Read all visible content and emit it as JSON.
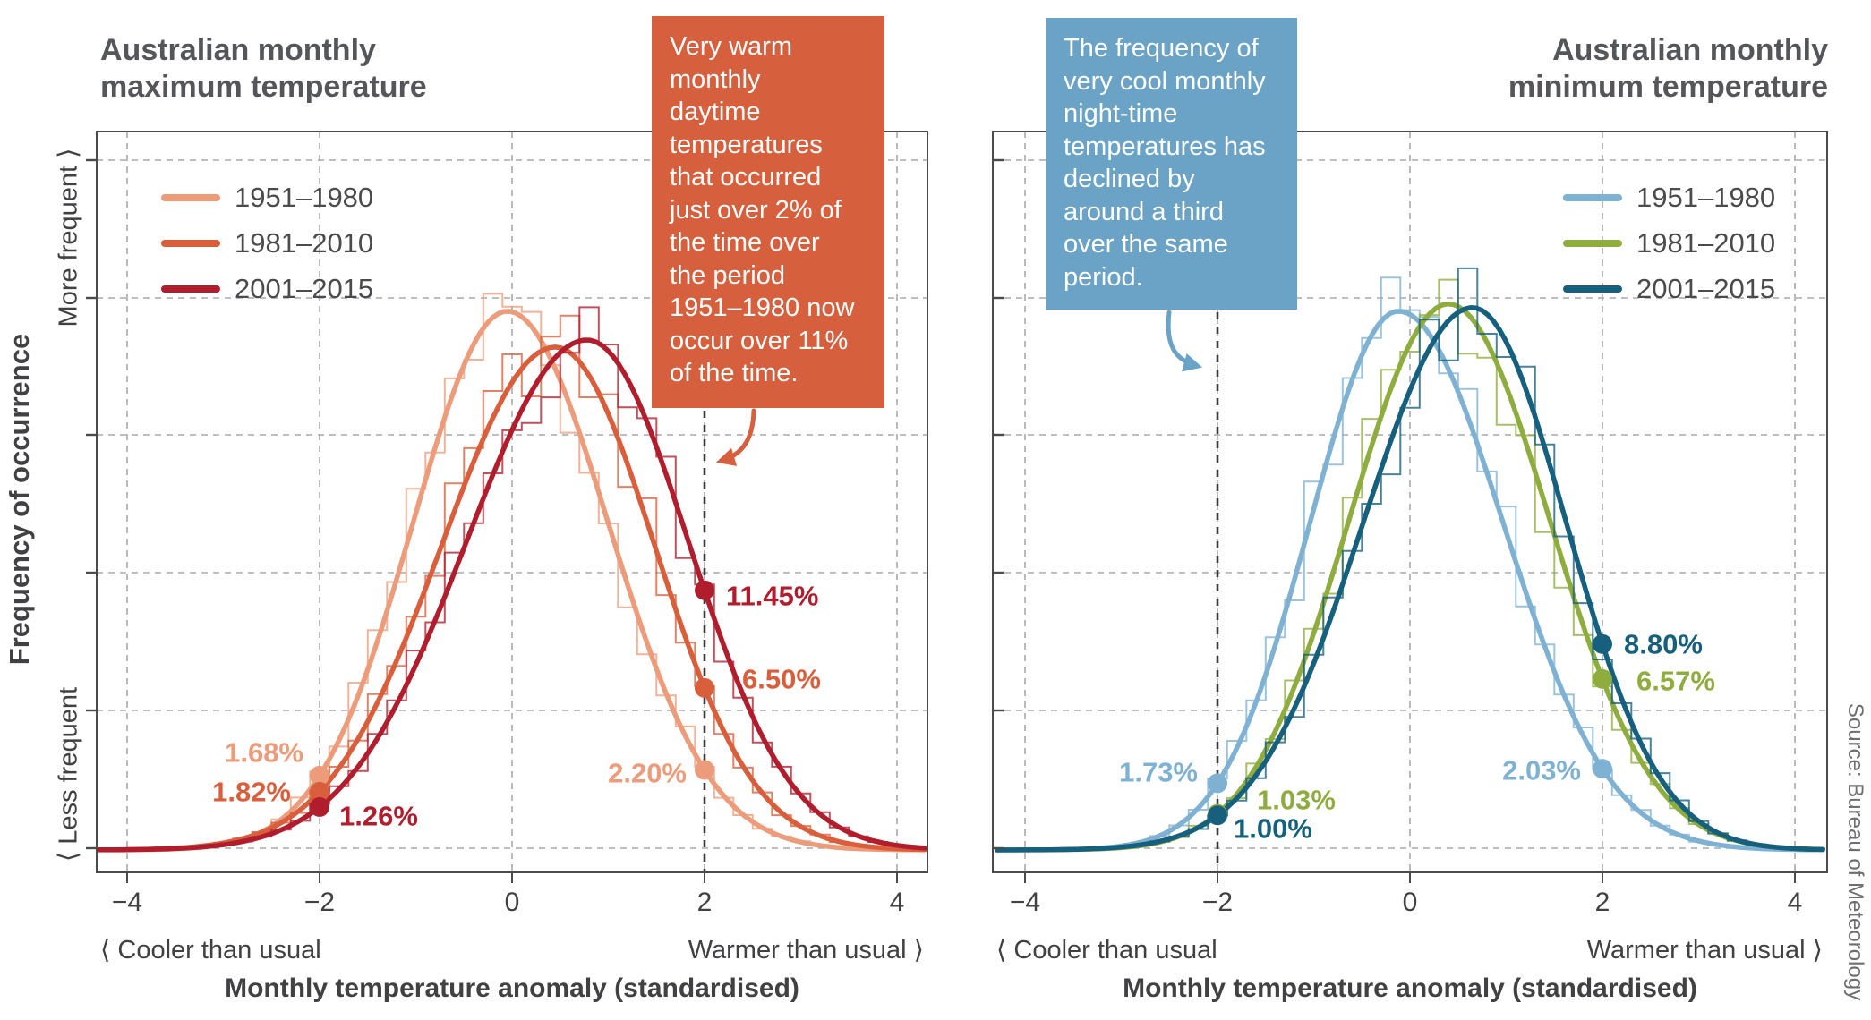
{
  "figure": {
    "y_axis_title": "Frequency of occurrence",
    "y_more_label": "More frequent ⟩",
    "y_less_label": "⟨ Less frequent",
    "source": "Source: Bureau of Meteorology",
    "colors": {
      "grid": "#A7A9AC",
      "border": "#4A4B4D",
      "annotation_line": "#3A3A3A",
      "text": "#414042",
      "title_text": "#55565A"
    }
  },
  "chart_data": [
    {
      "type": "area",
      "panel": "left",
      "title_line1": "Australian monthly",
      "title_line2": "maximum temperature",
      "xlabel": "Monthly temperature anomaly (standardised)",
      "x_tick_values": [
        -4,
        -2,
        0,
        2,
        4
      ],
      "x_ticks": [
        "−4",
        "−2",
        "0",
        "2",
        "4"
      ],
      "x_range": [
        -4.3,
        4.3
      ],
      "x_range_label_left": "⟨ Cooler than usual",
      "x_range_label_right": "Warmer than usual ⟩",
      "annotation_x": 2,
      "callout": {
        "text": "Very warm\nmonthly\ndaytime\ntemperatures\nthat occurred\njust over 2% of\nthe time over\nthe period\n1951–1980 now\noccur over 11%\nof the time.",
        "bg": "#D6603D"
      },
      "series": [
        {
          "name": "1951–1980",
          "color": "#EC9C7B",
          "distribution": {
            "mean": -0.05,
            "sd_left": 0.98,
            "sd_right": 1.05,
            "peak": 0.75
          },
          "markers": {
            "minus2": {
              "x": -2,
              "label": "1.68%"
            },
            "plus2": {
              "x": 2,
              "label": "2.20%"
            }
          }
        },
        {
          "name": "1981–2010",
          "color": "#D95F3C",
          "distribution": {
            "mean": 0.45,
            "sd_left": 1.18,
            "sd_right": 1.03,
            "peak": 0.7
          },
          "markers": {
            "minus2": {
              "x": -2,
              "label": "1.82%"
            },
            "plus2": {
              "x": 2,
              "label": "6.50%"
            }
          }
        },
        {
          "name": "2001–2015",
          "color": "#B01E2E",
          "distribution": {
            "mean": 0.78,
            "sd_left": 1.25,
            "sd_right": 1.05,
            "peak": 0.71
          },
          "markers": {
            "minus2": {
              "x": -2,
              "label": "1.26%"
            },
            "plus2": {
              "x": 2,
              "label": "11.45%"
            }
          }
        }
      ]
    },
    {
      "type": "area",
      "panel": "right",
      "title_line1": "Australian monthly",
      "title_line2": "minimum temperature",
      "xlabel": "Monthly temperature anomaly (standardised)",
      "x_tick_values": [
        -4,
        -2,
        0,
        2,
        4
      ],
      "x_ticks": [
        "−4",
        "−2",
        "0",
        "2",
        "4"
      ],
      "x_range": [
        -4.3,
        4.3
      ],
      "x_range_label_left": "⟨ Cooler than usual",
      "x_range_label_right": "Warmer than usual ⟩",
      "annotation_x": -2,
      "callout": {
        "text": "The frequency of\nvery cool monthly\nnight-time\ntemperatures has\ndeclined by\naround a third\nover the same\nperiod.",
        "bg": "#6BA3C6"
      },
      "series": [
        {
          "name": "1951–1980",
          "color": "#7FB2D2",
          "distribution": {
            "mean": -0.12,
            "sd_left": 0.92,
            "sd_right": 1.09,
            "peak": 0.75
          },
          "markers": {
            "minus2": {
              "x": -2,
              "label": "1.73%"
            },
            "plus2": {
              "x": 2,
              "label": "2.03%"
            }
          }
        },
        {
          "name": "1981–2010",
          "color": "#8FAD3F",
          "distribution": {
            "mean": 0.4,
            "sd_left": 1.03,
            "sd_right": 1.05,
            "peak": 0.76
          },
          "markers": {
            "minus2": {
              "x": -2,
              "label": "1.03%"
            },
            "plus2": {
              "x": 2,
              "label": "6.57%"
            }
          }
        },
        {
          "name": "2001–2015",
          "color": "#16607E",
          "distribution": {
            "mean": 0.65,
            "sd_left": 1.13,
            "sd_right": 0.97,
            "peak": 0.755
          },
          "markers": {
            "minus2": {
              "x": -2,
              "label": "1.00%"
            },
            "plus2": {
              "x": 2,
              "label": "8.80%"
            }
          }
        }
      ]
    }
  ]
}
